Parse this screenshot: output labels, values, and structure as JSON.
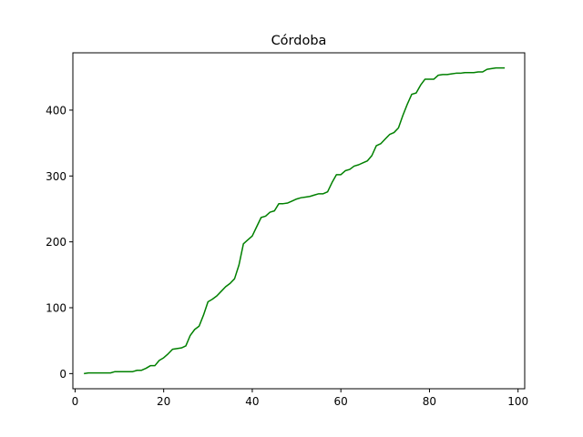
{
  "chart_data": {
    "type": "line",
    "title": "Córdoba",
    "xlabel": "",
    "ylabel": "",
    "xlim": [
      -0.5,
      101.5
    ],
    "ylim": [
      -23,
      487
    ],
    "xticks": [
      0,
      20,
      40,
      60,
      80,
      100
    ],
    "yticks": [
      0,
      100,
      200,
      300,
      400
    ],
    "grid": false,
    "series": [
      {
        "name": "Córdoba",
        "color": "#008000",
        "x": [
          2,
          3,
          4,
          5,
          6,
          7,
          8,
          9,
          10,
          11,
          12,
          13,
          14,
          15,
          16,
          17,
          18,
          19,
          20,
          21,
          22,
          23,
          24,
          25,
          26,
          27,
          28,
          29,
          30,
          31,
          32,
          33,
          34,
          35,
          36,
          37,
          38,
          39,
          40,
          41,
          42,
          43,
          44,
          45,
          46,
          47,
          48,
          49,
          50,
          51,
          52,
          53,
          54,
          55,
          56,
          57,
          58,
          59,
          60,
          61,
          62,
          63,
          64,
          65,
          66,
          67,
          68,
          69,
          70,
          71,
          72,
          73,
          74,
          75,
          76,
          77,
          78,
          79,
          80,
          81,
          82,
          83,
          84,
          85,
          86,
          87,
          88,
          89,
          90,
          91,
          92,
          93,
          94,
          95,
          96,
          97
        ],
        "y": [
          0,
          1,
          1,
          1,
          1,
          1,
          1,
          3,
          3,
          3,
          3,
          3,
          5,
          5,
          8,
          12,
          12,
          20,
          24,
          30,
          37,
          38,
          39,
          42,
          58,
          67,
          72,
          89,
          109,
          113,
          118,
          125,
          132,
          137,
          144,
          165,
          197,
          203,
          209,
          223,
          237,
          239,
          245,
          247,
          258,
          258,
          259,
          262,
          265,
          267,
          268,
          269,
          271,
          273,
          273,
          276,
          290,
          302,
          302,
          308,
          310,
          315,
          317,
          320,
          323,
          331,
          346,
          349,
          356,
          363,
          366,
          373,
          392,
          409,
          424,
          426,
          438,
          447,
          447,
          447,
          453,
          454,
          454,
          455,
          456,
          456,
          457,
          457,
          457,
          458,
          458,
          462,
          463,
          464,
          464,
          464
        ]
      }
    ]
  }
}
